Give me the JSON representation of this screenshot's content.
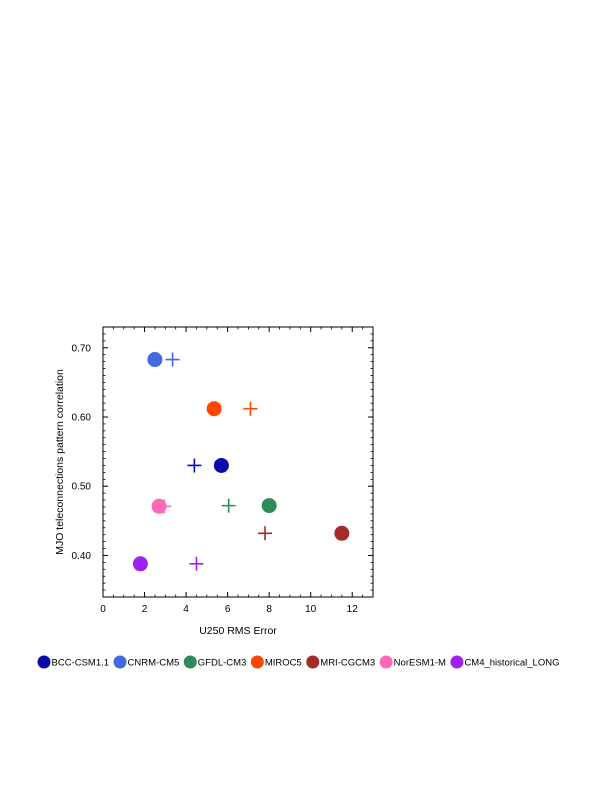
{
  "chart_data": {
    "type": "scatter",
    "xlabel": "U250 RMS Error",
    "ylabel": "MJO teleconnections pattern correlation",
    "xlim": [
      0,
      13
    ],
    "ylim": [
      0.34,
      0.73
    ],
    "x_ticks": [
      0,
      2,
      4,
      6,
      8,
      10,
      12
    ],
    "y_ticks": [
      0.4,
      0.5,
      0.6,
      0.7
    ],
    "y_tick_labels": [
      "0.40",
      "0.50",
      "0.60",
      "0.70"
    ],
    "grid": false,
    "legend_placement": "bottom",
    "marker_note": "filled circle and plus marker per model",
    "series": [
      {
        "name": "BCC-CSM1.1",
        "color": "#0a0aa8",
        "circle": {
          "x": 5.7,
          "y": 0.53
        },
        "plus": {
          "x": 4.4,
          "y": 0.53
        }
      },
      {
        "name": "CNRM-CM5",
        "color": "#4169e1",
        "circle": {
          "x": 2.5,
          "y": 0.683
        },
        "plus": {
          "x": 3.35,
          "y": 0.683
        }
      },
      {
        "name": "GFDL-CM3",
        "color": "#2e8b57",
        "circle": {
          "x": 8.0,
          "y": 0.472
        },
        "plus": {
          "x": 6.05,
          "y": 0.472
        }
      },
      {
        "name": "MIROC5",
        "color": "#ff4500",
        "circle": {
          "x": 5.35,
          "y": 0.612
        },
        "plus": {
          "x": 7.1,
          "y": 0.612
        }
      },
      {
        "name": "MRI-CGCM3",
        "color": "#a52a2a",
        "circle": {
          "x": 11.5,
          "y": 0.432
        },
        "plus": {
          "x": 7.8,
          "y": 0.432
        }
      },
      {
        "name": "NorESM1-M",
        "color": "#ff69b4",
        "circle": {
          "x": 2.7,
          "y": 0.471
        },
        "plus": {
          "x": 2.95,
          "y": 0.471
        }
      },
      {
        "name": "CM4_historical_LONG",
        "color": "#a020f0",
        "circle": {
          "x": 1.8,
          "y": 0.388
        },
        "plus": {
          "x": 4.5,
          "y": 0.388
        }
      }
    ]
  }
}
